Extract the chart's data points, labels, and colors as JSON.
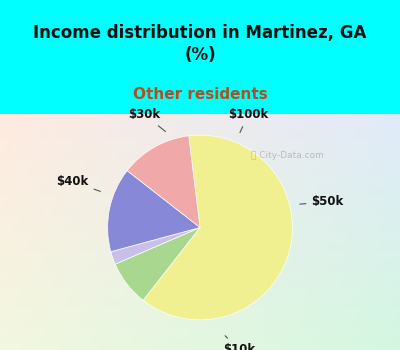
{
  "title": "Income distribution in Martinez, GA\n(%)",
  "subtitle": "Other residents",
  "title_color": "#111111",
  "subtitle_color": "#b05020",
  "bg_top_color": "#00ffff",
  "slices": [
    {
      "label": "$10k",
      "value": 55,
      "color": "#f0f090"
    },
    {
      "label": "$50k",
      "value": 7,
      "color": "#a8d890"
    },
    {
      "label": "$100k",
      "value": 2,
      "color": "#c8c0e8"
    },
    {
      "label": "$30k",
      "value": 13,
      "color": "#8888d8"
    },
    {
      "label": "$40k",
      "value": 11,
      "color": "#f0a8a8"
    }
  ],
  "startangle": 97,
  "annotation_fontsize": 8.5,
  "title_fontsize": 12,
  "subtitle_fontsize": 11
}
